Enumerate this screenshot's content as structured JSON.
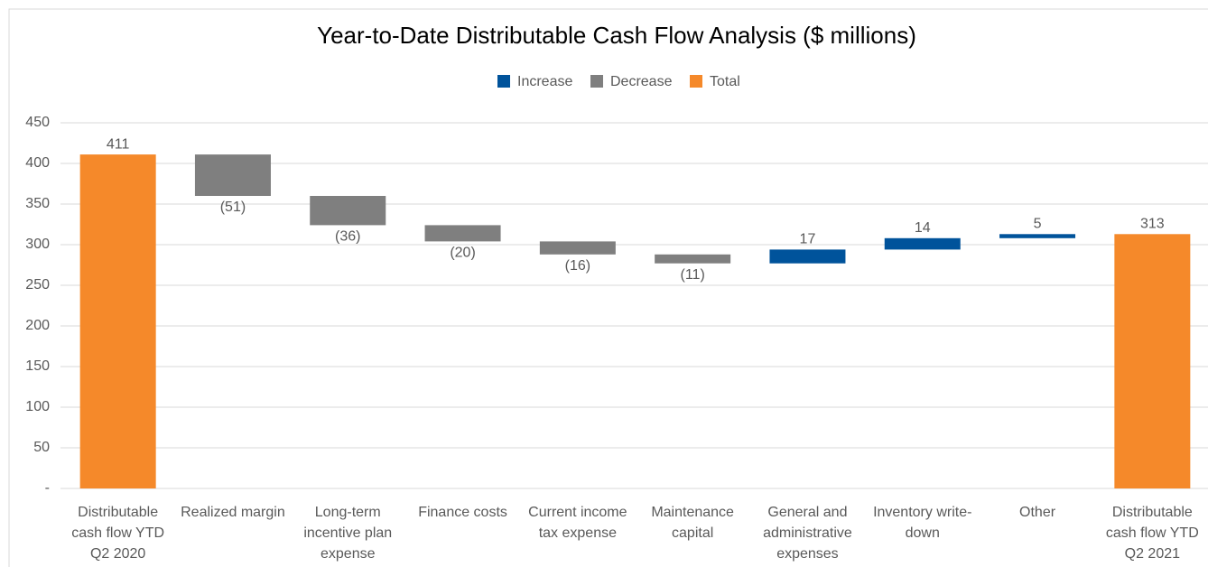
{
  "chart_data": {
    "type": "waterfall",
    "title": "Year-to-Date Distributable Cash Flow Analysis ($ millions)",
    "categories": [
      "Distributable cash flow YTD Q2 2020",
      "Realized margin",
      "Long-term incentive plan expense",
      "Finance costs",
      "Current income tax expense",
      "Maintenance capital",
      "General and administrative expenses",
      "Inventory write-down",
      "Other",
      "Distributable cash flow YTD Q2 2021"
    ],
    "values": [
      411,
      -51,
      -36,
      -20,
      -16,
      -11,
      17,
      14,
      5,
      313
    ],
    "value_labels": [
      "411",
      "(51)",
      "(36)",
      "(20)",
      "(16)",
      "(11)",
      "17",
      "14",
      "5",
      "313"
    ],
    "is_total": [
      true,
      false,
      false,
      false,
      false,
      false,
      false,
      false,
      false,
      true
    ],
    "legend": [
      {
        "name": "Increase",
        "color": "#00539b"
      },
      {
        "name": "Decrease",
        "color": "#7f7f7f"
      },
      {
        "name": "Total",
        "color": "#f5892a"
      }
    ],
    "ylim": [
      0,
      450
    ],
    "yticks": [
      {
        "value": 0,
        "label": "-"
      },
      50,
      100,
      150,
      200,
      250,
      300,
      350,
      400,
      450
    ],
    "grid": true
  }
}
